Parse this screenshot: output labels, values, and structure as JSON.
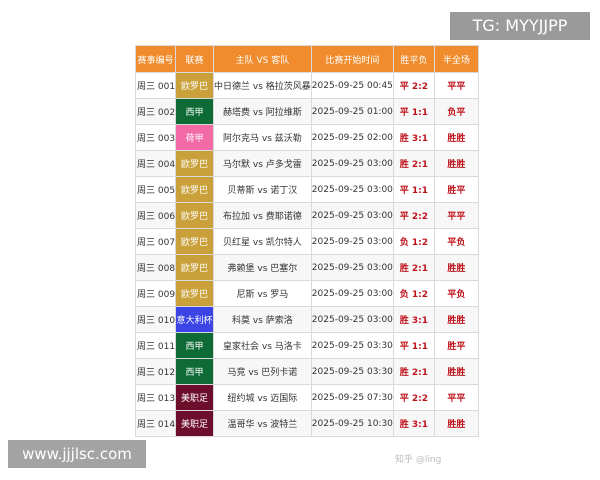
{
  "overlay": {
    "tg": "TG: MYYJJPP",
    "site": "www.jjjlsc.com",
    "watermark": "知乎 @ling"
  },
  "headers": [
    "赛事编号",
    "联赛",
    "主队 VS 客队",
    "比赛开始时间",
    "胜平负",
    "半全场"
  ],
  "league_colors": {
    "欧罗巴": "#c9a03a",
    "西甲": "#0e6b35",
    "荷甲": "#f26aa6",
    "意大利杯": "#3b45e6",
    "美职足": "#6d0e2c"
  },
  "rows": [
    [
      "周三 001",
      "欧罗巴",
      "中日德兰 vs 格拉茨风暴",
      "2025-09-25 00:45",
      "平 2:2",
      "平平"
    ],
    [
      "周三 002",
      "西甲",
      "赫塔费 vs 阿拉维斯",
      "2025-09-25 01:00",
      "平 1:1",
      "负平"
    ],
    [
      "周三 003",
      "荷甲",
      "阿尔克马 vs 兹沃勒",
      "2025-09-25 02:00",
      "胜 3:1",
      "胜胜"
    ],
    [
      "周三 004",
      "欧罗巴",
      "马尔默 vs 卢多戈雷",
      "2025-09-25 03:00",
      "胜 2:1",
      "胜胜"
    ],
    [
      "周三 005",
      "欧罗巴",
      "贝蒂斯 vs 诺丁汉",
      "2025-09-25 03:00",
      "平 1:1",
      "胜平"
    ],
    [
      "周三 006",
      "欧罗巴",
      "布拉加 vs 费耶诺德",
      "2025-09-25 03:00",
      "平 2:2",
      "平平"
    ],
    [
      "周三 007",
      "欧罗巴",
      "贝红星 vs 凯尔特人",
      "2025-09-25 03:00",
      "负 1:2",
      "平负"
    ],
    [
      "周三 008",
      "欧罗巴",
      "弗赖堡 vs 巴塞尔",
      "2025-09-25 03:00",
      "胜 2:1",
      "胜胜"
    ],
    [
      "周三 009",
      "欧罗巴",
      "尼斯 vs 罗马",
      "2025-09-25 03:00",
      "负 1:2",
      "平负"
    ],
    [
      "周三 010",
      "意大利杯",
      "科莫 vs 萨索洛",
      "2025-09-25 03:00",
      "胜 3:1",
      "胜胜"
    ],
    [
      "周三 011",
      "西甲",
      "皇家社会 vs 马洛卡",
      "2025-09-25 03:30",
      "平 1:1",
      "胜平"
    ],
    [
      "周三 012",
      "西甲",
      "马竞 vs 巴列卡诺",
      "2025-09-25 03:30",
      "胜 2:1",
      "胜胜"
    ],
    [
      "周三 013",
      "美职足",
      "纽约城 vs 迈国际",
      "2025-09-25 07:30",
      "平 2:2",
      "平平"
    ],
    [
      "周三 014",
      "美职足",
      "温哥华 vs 波特兰",
      "2025-09-25 10:30",
      "胜 3:1",
      "胜胜"
    ]
  ]
}
